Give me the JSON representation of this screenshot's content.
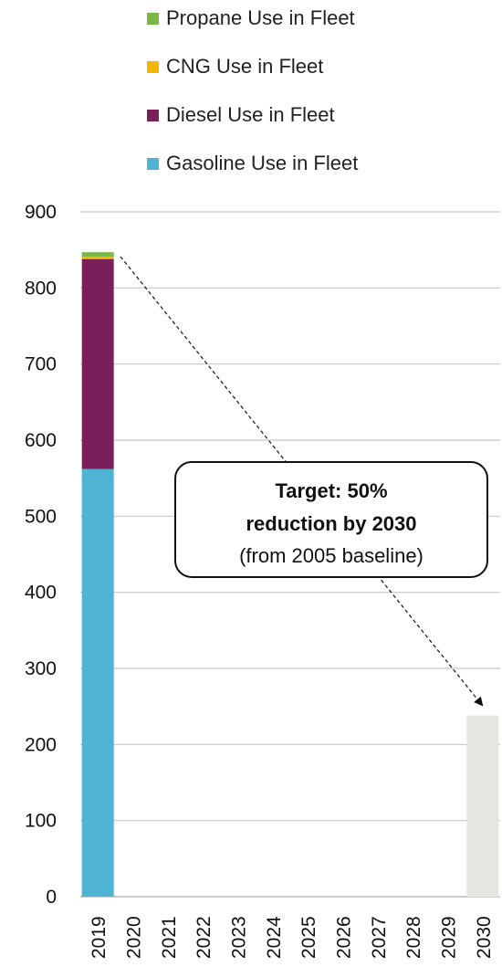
{
  "chart_data": {
    "type": "bar",
    "stacked": true,
    "categories": [
      "2019",
      "2020",
      "2021",
      "2022",
      "2023",
      "2024",
      "2025",
      "2026",
      "2027",
      "2028",
      "2029",
      "2030"
    ],
    "series": [
      {
        "name": "Gasoline Use in Fleet",
        "color": "#4FB3D3",
        "values": [
          562,
          0,
          0,
          0,
          0,
          0,
          0,
          0,
          0,
          0,
          0,
          0
        ]
      },
      {
        "name": "Diesel Use in Fleet",
        "color": "#7B1F5A",
        "values": [
          276,
          0,
          0,
          0,
          0,
          0,
          0,
          0,
          0,
          0,
          0,
          0
        ]
      },
      {
        "name": "CNG Use in Fleet",
        "color": "#F2B705",
        "values": [
          3,
          0,
          0,
          0,
          0,
          0,
          0,
          0,
          0,
          0,
          0,
          0
        ]
      },
      {
        "name": "Propane Use in Fleet",
        "color": "#7AB648",
        "values": [
          6,
          0,
          0,
          0,
          0,
          0,
          0,
          0,
          0,
          0,
          0,
          0
        ]
      }
    ],
    "target": {
      "category": "2030",
      "value": 238,
      "color": "#E5E6E0"
    },
    "legend_order": [
      "Propane Use in Fleet",
      "CNG Use in Fleet",
      "Diesel Use in Fleet",
      "Gasoline Use in Fleet"
    ],
    "legend_position": "top",
    "ylim": [
      0,
      900
    ],
    "yticks": [
      "0",
      "100",
      "200",
      "300",
      "400",
      "500",
      "600",
      "700",
      "800",
      "900"
    ],
    "grid": true,
    "annotation": {
      "line1": "Target: 50%",
      "line2": "reduction by 2030",
      "line3": "(from 2005 baseline)"
    },
    "title": "",
    "xlabel": "",
    "ylabel": ""
  }
}
